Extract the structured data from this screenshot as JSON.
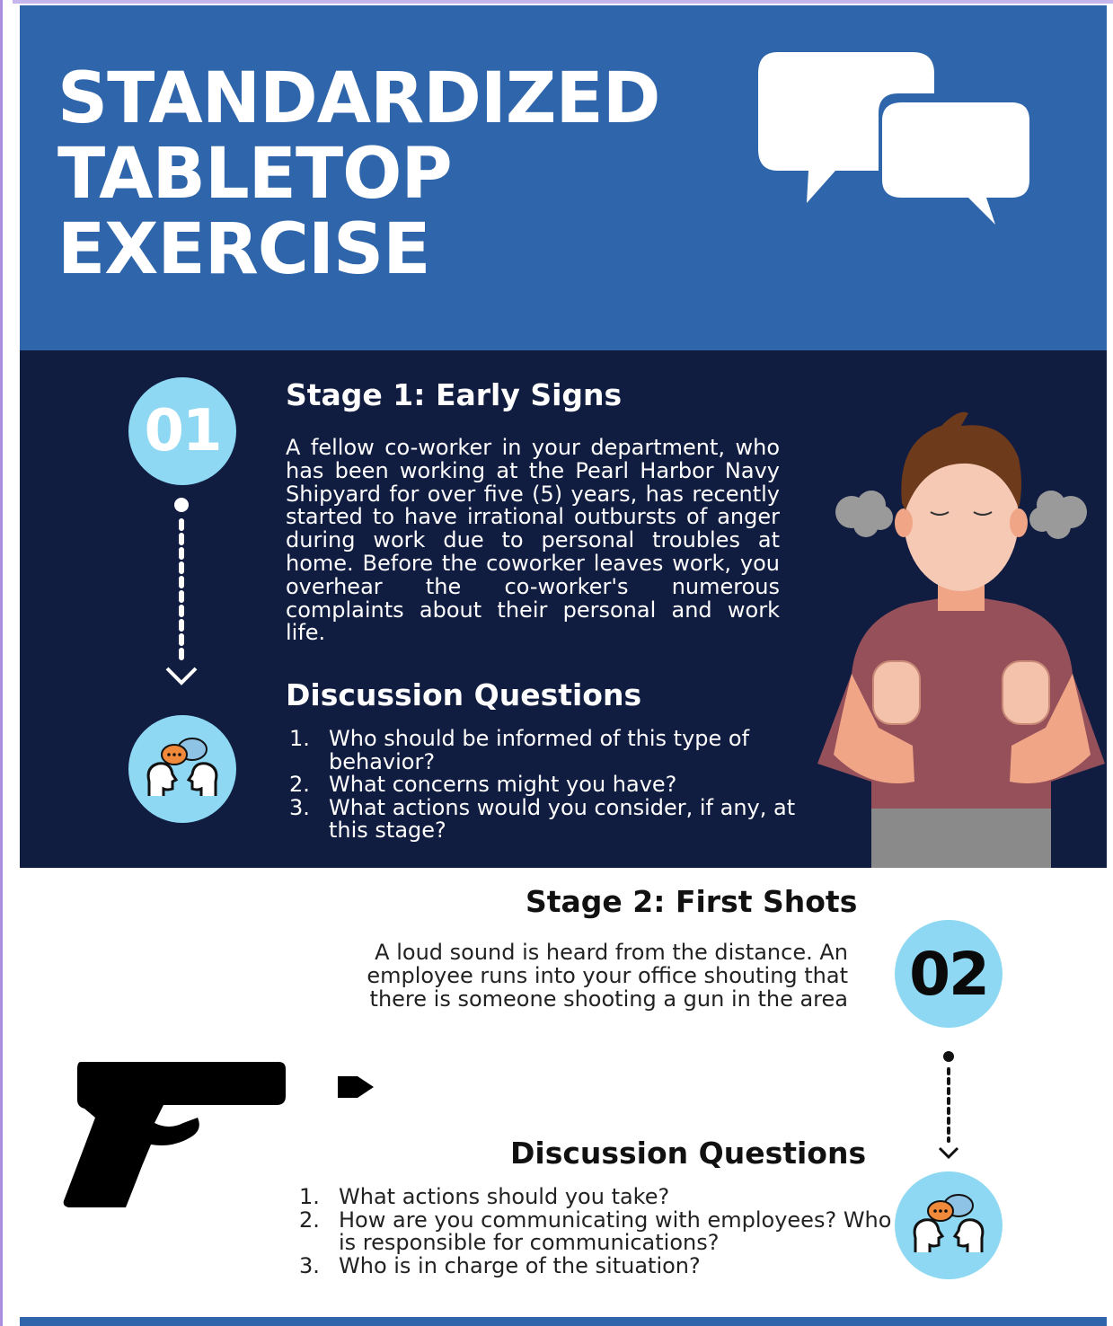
{
  "header": {
    "title_lines": [
      "STANDARDIZED",
      "TABLETOP",
      "EXERCISE"
    ],
    "icon": "chat-bubbles-icon",
    "background": "#2f66ab"
  },
  "stage1": {
    "number": "01",
    "title": "Stage 1: Early Signs",
    "body": "A fellow co-worker in your department, who has been working at the Pearl Harbor Navy Shipyard for over five (5) years, has recently started to have irrational outbursts of anger during work due to personal troubles at home. Before the coworker leaves work, you overhear the co-worker's numerous complaints about their personal and work life.",
    "discussion_title": "Discussion Questions",
    "questions": [
      {
        "n": "1.",
        "text": "Who should be informed of this type of behavior?"
      },
      {
        "n": "2.",
        "text": "What concerns might you have?"
      },
      {
        "n": "3.",
        "text": "What actions would you consider, if any, at this stage?"
      }
    ],
    "background": "#111d40",
    "illustration": "angry-man-illustration"
  },
  "stage2": {
    "number": "02",
    "title": "Stage 2: First Shots",
    "body_lines": [
      "A loud sound is heard from the distance. An",
      "employee runs into your office shouting that",
      "there is someone shooting a gun in the area"
    ],
    "discussion_title": "Discussion Questions",
    "questions": [
      {
        "n": "1.",
        "text": "What actions should you take?"
      },
      {
        "n": "2.",
        "text": "How are you communicating with employees? Who is responsible for communications?"
      },
      {
        "n": "3.",
        "text": "Who is in charge of the situation?"
      }
    ],
    "illustration": "handgun-silhouette-icon"
  },
  "colors": {
    "accent_circle": "#8ed8f3",
    "dark_navy": "#111d40",
    "blue": "#2f66ab"
  }
}
